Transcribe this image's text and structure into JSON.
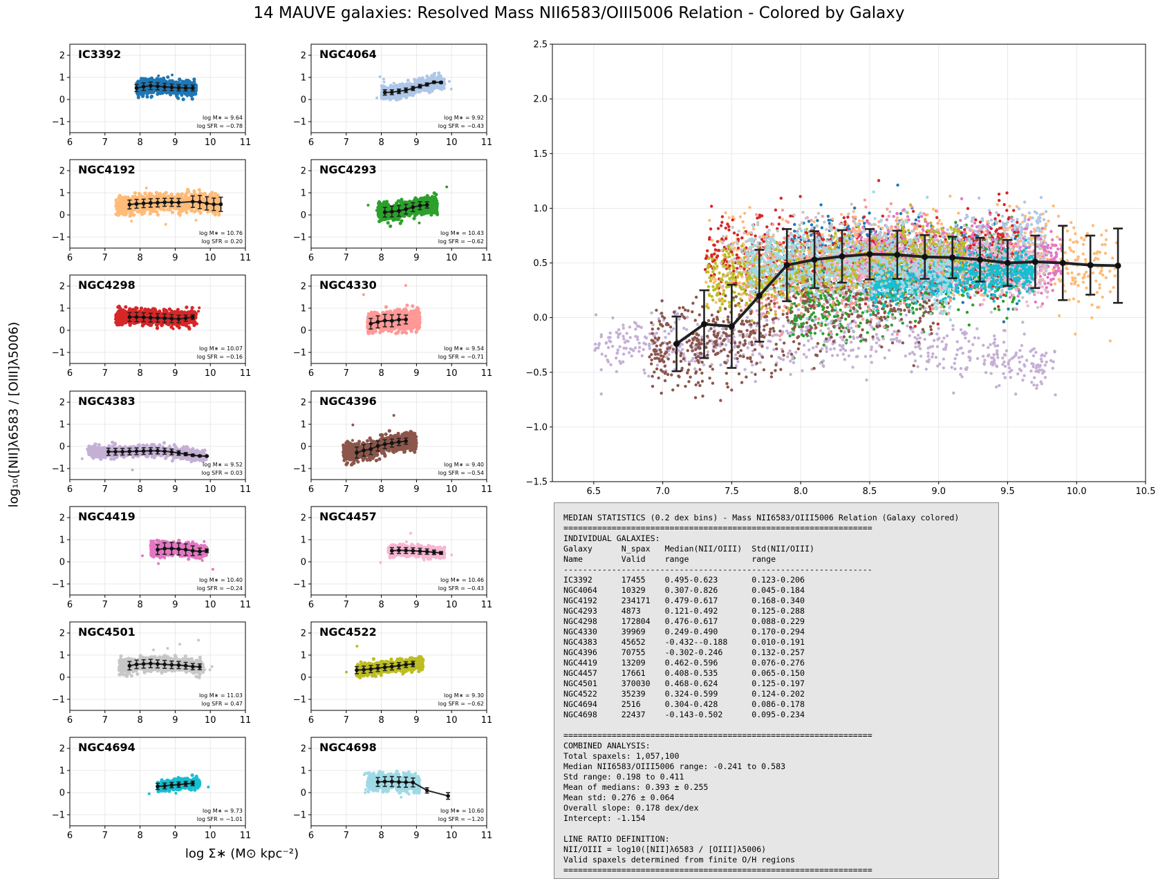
{
  "figure": {
    "title": "14 MAUVE galaxies: Resolved Mass NII6583/OIII5006 Relation - Colored by Galaxy",
    "ylabel": "log₁₀([NII]λ6583 / [OIII]λ5006)",
    "xlabel": "log Σ∗ (M⊙ kpc⁻²)"
  },
  "chart_data": [
    {
      "type": "scatter",
      "name": "IC3392",
      "color": "#1f77b4",
      "xlim": [
        6,
        11
      ],
      "ylim": [
        -1.5,
        2.5
      ],
      "xticks": [
        6,
        7,
        8,
        9,
        10,
        11
      ],
      "yticks": [
        -1,
        0,
        1,
        2
      ],
      "annotation": [
        "log M∗ = 9.64",
        "log SFR = −0.78"
      ],
      "cloud": {
        "xmin": 7.9,
        "xmax": 9.6,
        "ycenter": 0.56,
        "yspread": 0.22
      },
      "median_x": [
        7.9,
        8.1,
        8.3,
        8.5,
        8.7,
        8.9,
        9.1,
        9.3,
        9.5
      ],
      "median_y": [
        0.52,
        0.58,
        0.62,
        0.6,
        0.57,
        0.55,
        0.53,
        0.52,
        0.52
      ],
      "median_err": [
        0.16,
        0.17,
        0.17,
        0.16,
        0.16,
        0.15,
        0.14,
        0.13,
        0.13
      ]
    },
    {
      "type": "scatter",
      "name": "NGC4064",
      "color": "#aec7e8",
      "xlim": [
        6,
        11
      ],
      "ylim": [
        -1.5,
        2.5
      ],
      "xticks": [
        6,
        7,
        8,
        9,
        10,
        11
      ],
      "yticks": [
        -1,
        0,
        1,
        2
      ],
      "annotation": [
        "log M∗ = 9.92",
        "log SFR = −0.43"
      ],
      "cloud": {
        "xmin": 8.0,
        "xmax": 9.8,
        "ycenter": 0.55,
        "yspread": 0.18
      },
      "median_x": [
        8.1,
        8.3,
        8.5,
        8.7,
        8.9,
        9.1,
        9.3,
        9.5,
        9.7
      ],
      "median_y": [
        0.32,
        0.33,
        0.37,
        0.42,
        0.5,
        0.6,
        0.68,
        0.78,
        0.77
      ],
      "median_err": [
        0.12,
        0.11,
        0.1,
        0.1,
        0.09,
        0.08,
        0.07,
        0.05,
        0.04
      ]
    },
    {
      "type": "scatter",
      "name": "NGC4192",
      "color": "#ffbb78",
      "xlim": [
        6,
        11
      ],
      "ylim": [
        -1.5,
        2.5
      ],
      "xticks": [
        6,
        7,
        8,
        9,
        10,
        11
      ],
      "yticks": [
        -1,
        0,
        1,
        2
      ],
      "annotation": [
        "log M∗ = 10.76",
        "log SFR = 0.20"
      ],
      "cloud": {
        "xmin": 7.3,
        "xmax": 10.3,
        "ycenter": 0.5,
        "yspread": 0.28
      },
      "median_x": [
        7.7,
        7.9,
        8.1,
        8.3,
        8.5,
        8.7,
        8.9,
        9.1,
        9.5,
        9.7,
        9.9,
        10.1,
        10.3
      ],
      "median_y": [
        0.47,
        0.5,
        0.52,
        0.54,
        0.55,
        0.57,
        0.57,
        0.56,
        0.6,
        0.58,
        0.52,
        0.48,
        0.48
      ],
      "median_err": [
        0.2,
        0.2,
        0.19,
        0.19,
        0.19,
        0.18,
        0.18,
        0.18,
        0.26,
        0.3,
        0.3,
        0.28,
        0.32
      ]
    },
    {
      "type": "scatter",
      "name": "NGC4293",
      "color": "#2ca02c",
      "xlim": [
        6,
        11
      ],
      "ylim": [
        -1.5,
        2.5
      ],
      "xticks": [
        6,
        7,
        8,
        9,
        10,
        11
      ],
      "yticks": [
        -1,
        0,
        1,
        2
      ],
      "annotation": [
        "log M∗ = 10.43",
        "log SFR = −0.62"
      ],
      "cloud": {
        "xmin": 7.9,
        "xmax": 9.6,
        "ycenter": 0.28,
        "yspread": 0.25
      },
      "median_x": [
        8.1,
        8.3,
        8.5,
        8.7,
        8.9,
        9.1,
        9.3
      ],
      "median_y": [
        0.12,
        0.15,
        0.18,
        0.26,
        0.35,
        0.42,
        0.45
      ],
      "median_err": [
        0.22,
        0.24,
        0.24,
        0.22,
        0.2,
        0.18,
        0.14
      ]
    },
    {
      "type": "scatter",
      "name": "NGC4298",
      "color": "#d62728",
      "xlim": [
        6,
        11
      ],
      "ylim": [
        -1.5,
        2.5
      ],
      "xticks": [
        6,
        7,
        8,
        9,
        10,
        11
      ],
      "yticks": [
        -1,
        0,
        1,
        2
      ],
      "annotation": [
        "log M∗ = 10.07",
        "log SFR = −0.16"
      ],
      "cloud": {
        "xmin": 7.3,
        "xmax": 9.6,
        "ycenter": 0.57,
        "yspread": 0.24
      },
      "median_x": [
        7.7,
        7.9,
        8.1,
        8.3,
        8.5,
        8.7,
        8.9,
        9.1,
        9.3,
        9.5
      ],
      "median_y": [
        0.6,
        0.6,
        0.59,
        0.57,
        0.56,
        0.55,
        0.53,
        0.51,
        0.55,
        0.6
      ],
      "median_err": [
        0.2,
        0.21,
        0.2,
        0.2,
        0.19,
        0.19,
        0.18,
        0.17,
        0.14,
        0.1
      ]
    },
    {
      "type": "scatter",
      "name": "NGC4330",
      "color": "#ff9896",
      "xlim": [
        6,
        11
      ],
      "ylim": [
        -1.5,
        2.5
      ],
      "xticks": [
        6,
        7,
        8,
        9,
        10,
        11
      ],
      "yticks": [
        -1,
        0,
        1,
        2
      ],
      "annotation": [
        "log M∗ = 9.54",
        "log SFR = −0.71"
      ],
      "cloud": {
        "xmin": 7.6,
        "xmax": 9.1,
        "ycenter": 0.4,
        "yspread": 0.3
      },
      "median_x": [
        7.7,
        7.9,
        8.1,
        8.3,
        8.5,
        8.7
      ],
      "median_y": [
        0.3,
        0.38,
        0.44,
        0.43,
        0.48,
        0.49
      ],
      "median_err": [
        0.24,
        0.27,
        0.28,
        0.27,
        0.24,
        0.2
      ]
    },
    {
      "type": "scatter",
      "name": "NGC4383",
      "color": "#c5b0d5",
      "xlim": [
        6,
        11
      ],
      "ylim": [
        -1.5,
        2.5
      ],
      "xticks": [
        6,
        7,
        8,
        9,
        10,
        11
      ],
      "yticks": [
        -1,
        0,
        1,
        2
      ],
      "annotation": [
        "log M∗ = 9.52",
        "log SFR = 0.03"
      ],
      "cloud": {
        "xmin": 6.5,
        "xmax": 9.9,
        "ycenter": -0.28,
        "yspread": 0.18
      },
      "median_x": [
        7.1,
        7.3,
        7.5,
        7.7,
        7.9,
        8.1,
        8.3,
        8.5,
        8.7,
        8.9,
        9.1,
        9.3,
        9.5,
        9.7,
        9.9
      ],
      "median_y": [
        -0.24,
        -0.24,
        -0.24,
        -0.23,
        -0.22,
        -0.21,
        -0.2,
        -0.2,
        -0.22,
        -0.25,
        -0.3,
        -0.35,
        -0.4,
        -0.43,
        -0.44
      ],
      "median_err": [
        0.16,
        0.15,
        0.15,
        0.15,
        0.15,
        0.15,
        0.14,
        0.14,
        0.14,
        0.13,
        0.1,
        0.07,
        0.05,
        0.03,
        0.02
      ]
    },
    {
      "type": "scatter",
      "name": "NGC4396",
      "color": "#8c564b",
      "xlim": [
        6,
        11
      ],
      "ylim": [
        -1.5,
        2.5
      ],
      "xticks": [
        6,
        7,
        8,
        9,
        10,
        11
      ],
      "yticks": [
        -1,
        0,
        1,
        2
      ],
      "annotation": [
        "log M∗ = 9.40",
        "log SFR = −0.54"
      ],
      "cloud": {
        "xmin": 6.9,
        "xmax": 9.0,
        "ycenter": -0.02,
        "yspread": 0.28
      },
      "median_x": [
        7.3,
        7.5,
        7.7,
        7.9,
        8.1,
        8.3,
        8.5,
        8.7
      ],
      "median_y": [
        -0.28,
        -0.18,
        -0.12,
        0.02,
        0.1,
        0.15,
        0.2,
        0.24
      ],
      "median_err": [
        0.25,
        0.26,
        0.25,
        0.23,
        0.2,
        0.18,
        0.16,
        0.14
      ]
    },
    {
      "type": "scatter",
      "name": "NGC4419",
      "color": "#e377c2",
      "xlim": [
        6,
        11
      ],
      "ylim": [
        -1.5,
        2.5
      ],
      "xticks": [
        6,
        7,
        8,
        9,
        10,
        11
      ],
      "yticks": [
        -1,
        0,
        1,
        2
      ],
      "annotation": [
        "log M∗ = 10.40",
        "log SFR = −0.24"
      ],
      "cloud": {
        "xmin": 8.3,
        "xmax": 9.9,
        "ycenter": 0.55,
        "yspread": 0.2
      },
      "median_x": [
        8.5,
        8.7,
        8.9,
        9.1,
        9.3,
        9.5,
        9.7,
        9.9
      ],
      "median_y": [
        0.55,
        0.6,
        0.6,
        0.58,
        0.55,
        0.5,
        0.47,
        0.5
      ],
      "median_err": [
        0.22,
        0.26,
        0.27,
        0.27,
        0.26,
        0.22,
        0.15,
        0.08
      ]
    },
    {
      "type": "scatter",
      "name": "NGC4457",
      "color": "#f7b6d2",
      "xlim": [
        6,
        11
      ],
      "ylim": [
        -1.5,
        2.5
      ],
      "xticks": [
        6,
        7,
        8,
        9,
        10,
        11
      ],
      "yticks": [
        -1,
        0,
        1,
        2
      ],
      "annotation": [
        "log M∗ = 10.46",
        "log SFR = −0.43"
      ],
      "cloud": {
        "xmin": 8.2,
        "xmax": 9.8,
        "ycenter": 0.45,
        "yspread": 0.15
      },
      "median_x": [
        8.3,
        8.5,
        8.7,
        8.9,
        9.1,
        9.3,
        9.5,
        9.7
      ],
      "median_y": [
        0.5,
        0.52,
        0.51,
        0.5,
        0.48,
        0.46,
        0.43,
        0.4
      ],
      "median_err": [
        0.14,
        0.14,
        0.13,
        0.13,
        0.13,
        0.12,
        0.1,
        0.06
      ]
    },
    {
      "type": "scatter",
      "name": "NGC4501",
      "color": "#c7c7c7",
      "xlim": [
        6,
        11
      ],
      "ylim": [
        -1.5,
        2.5
      ],
      "xticks": [
        6,
        7,
        8,
        9,
        10,
        11
      ],
      "yticks": [
        -1,
        0,
        1,
        2
      ],
      "annotation": [
        "log M∗ = 11.03",
        "log SFR = 0.47"
      ],
      "cloud": {
        "xmin": 7.4,
        "xmax": 9.8,
        "ycenter": 0.6,
        "yspread": 0.22
      },
      "median_x": [
        7.7,
        7.9,
        8.1,
        8.3,
        8.5,
        8.7,
        8.9,
        9.1,
        9.3,
        9.5,
        9.7
      ],
      "median_y": [
        0.52,
        0.58,
        0.6,
        0.62,
        0.6,
        0.58,
        0.56,
        0.55,
        0.52,
        0.48,
        0.47
      ],
      "median_err": [
        0.19,
        0.19,
        0.19,
        0.19,
        0.18,
        0.18,
        0.17,
        0.16,
        0.15,
        0.14,
        0.13
      ]
    },
    {
      "type": "scatter",
      "name": "NGC4522",
      "color": "#bcbd22",
      "xlim": [
        6,
        11
      ],
      "ylim": [
        -1.5,
        2.5
      ],
      "xticks": [
        6,
        7,
        8,
        9,
        10,
        11
      ],
      "yticks": [
        -1,
        0,
        1,
        2
      ],
      "annotation": [
        "log M∗ = 9.30",
        "log SFR = −0.62"
      ],
      "cloud": {
        "xmin": 7.3,
        "xmax": 9.2,
        "ycenter": 0.42,
        "yspread": 0.18
      },
      "median_x": [
        7.3,
        7.5,
        7.7,
        7.9,
        8.1,
        8.3,
        8.5,
        8.7,
        8.9
      ],
      "median_y": [
        0.32,
        0.34,
        0.37,
        0.41,
        0.45,
        0.48,
        0.52,
        0.57,
        0.6
      ],
      "median_err": [
        0.16,
        0.16,
        0.16,
        0.15,
        0.15,
        0.15,
        0.14,
        0.13,
        0.12
      ]
    },
    {
      "type": "scatter",
      "name": "NGC4694",
      "color": "#17becf",
      "xlim": [
        6,
        11
      ],
      "ylim": [
        -1.5,
        2.5
      ],
      "xticks": [
        6,
        7,
        8,
        9,
        10,
        11
      ],
      "yticks": [
        -1,
        0,
        1,
        2
      ],
      "annotation": [
        "log M∗ = 9.73",
        "log SFR = −1.01"
      ],
      "cloud": {
        "xmin": 8.5,
        "xmax": 9.7,
        "ycenter": 0.33,
        "yspread": 0.13
      },
      "median_x": [
        8.5,
        8.7,
        8.9,
        9.1,
        9.3,
        9.5
      ],
      "median_y": [
        0.28,
        0.3,
        0.34,
        0.36,
        0.4,
        0.42
      ],
      "median_err": [
        0.14,
        0.13,
        0.12,
        0.12,
        0.11,
        0.1
      ]
    },
    {
      "type": "scatter",
      "name": "NGC4698",
      "color": "#9edae5",
      "xlim": [
        6,
        11
      ],
      "ylim": [
        -1.5,
        2.5
      ],
      "xticks": [
        6,
        7,
        8,
        9,
        10,
        11
      ],
      "yticks": [
        -1,
        0,
        1,
        2
      ],
      "annotation": [
        "log M∗ = 10.60",
        "log SFR = −1.20"
      ],
      "cloud": {
        "xmin": 7.6,
        "xmax": 9.1,
        "ycenter": 0.42,
        "yspread": 0.24
      },
      "median_x": [
        7.9,
        8.1,
        8.3,
        8.5,
        8.7,
        8.9,
        9.3,
        9.9
      ],
      "median_y": [
        0.48,
        0.5,
        0.5,
        0.48,
        0.47,
        0.46,
        0.1,
        -0.15
      ],
      "median_err": [
        0.2,
        0.22,
        0.23,
        0.23,
        0.23,
        0.2,
        0.12,
        0.15
      ]
    },
    {
      "type": "scatter",
      "name": "combined",
      "xlim": [
        6.2,
        10.5
      ],
      "ylim": [
        -1.5,
        2.5
      ],
      "xticks": [
        6.5,
        7.0,
        7.5,
        8.0,
        8.5,
        9.0,
        9.5,
        10.0,
        10.5
      ],
      "yticks": [
        -1.5,
        -1.0,
        -0.5,
        0.0,
        0.5,
        1.0,
        1.5,
        2.0,
        2.5
      ],
      "median_x": [
        7.1,
        7.3,
        7.5,
        7.7,
        7.9,
        8.1,
        8.3,
        8.5,
        8.7,
        8.9,
        9.1,
        9.3,
        9.5,
        9.7,
        9.9,
        10.1,
        10.3
      ],
      "median_y": [
        -0.24,
        -0.06,
        -0.08,
        0.2,
        0.48,
        0.53,
        0.56,
        0.58,
        0.575,
        0.555,
        0.55,
        0.53,
        0.5,
        0.51,
        0.5,
        0.48,
        0.475
      ],
      "median_err": [
        0.25,
        0.31,
        0.38,
        0.42,
        0.33,
        0.26,
        0.24,
        0.23,
        0.22,
        0.2,
        0.19,
        0.2,
        0.21,
        0.24,
        0.34,
        0.27,
        0.34
      ]
    }
  ],
  "stats_text": "MEDIAN STATISTICS (0.2 dex bins) - Mass NII6583/OIII5006 Relation (Galaxy colored)\n================================================================\nINDIVIDUAL GALAXIES:\nGalaxy      N_spax   Median(NII/OIII)  Std(NII/OIII)\nName        Valid    range             range\n----------------------------------------------------------------\nIC3392      17455    0.495-0.623       0.123-0.206\nNGC4064     10329    0.307-0.826       0.045-0.184\nNGC4192     234171   0.479-0.617       0.168-0.340\nNGC4293     4873     0.121-0.492       0.125-0.288\nNGC4298     172804   0.476-0.617       0.088-0.229\nNGC4330     39969    0.249-0.490       0.170-0.294\nNGC4383     45652    -0.432--0.188     0.010-0.191\nNGC4396     70755    -0.302-0.246      0.132-0.257\nNGC4419     13209    0.462-0.596       0.076-0.276\nNGC4457     17661    0.408-0.535       0.065-0.150\nNGC4501     370030   0.468-0.624       0.125-0.197\nNGC4522     35239    0.324-0.599       0.124-0.202\nNGC4694     2516     0.304-0.428       0.086-0.178\nNGC4698     22437    -0.143-0.502      0.095-0.234\n\n================================================================\nCOMBINED ANALYSIS:\nTotal spaxels: 1,057,100\nMedian NII6583/OIII5006 range: -0.241 to 0.583\nStd range: 0.198 to 0.411\nMean of medians: 0.393 ± 0.255\nMean std: 0.276 ± 0.064\nOverall slope: 0.178 dex/dex\nIntercept: -1.154\n\nLINE RATIO DEFINITION:\nNII/OIII = log10([NII]λ6583 / [OIII]λ5006)\nValid spaxels determined from finite O/H regions\n================================================================"
}
